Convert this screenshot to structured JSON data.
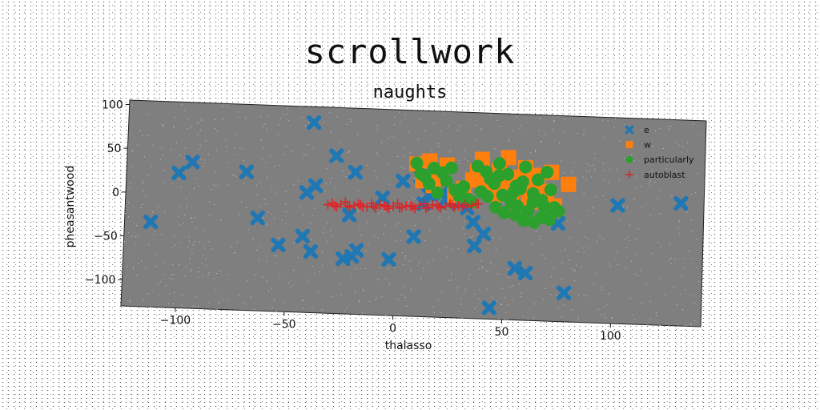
{
  "title": "scrollwork",
  "chart_data": {
    "type": "scatter",
    "title": "naughts",
    "xlabel": "thalasso",
    "ylabel": "pheasantwood",
    "xlim": [
      -125,
      140
    ],
    "ylim": [
      -130,
      105
    ],
    "xticks": [
      -100,
      -50,
      0,
      50,
      100
    ],
    "yticks": [
      -100,
      -50,
      0,
      50,
      100
    ],
    "xtick_labels": [
      "−100",
      "−50",
      "0",
      "50",
      "100"
    ],
    "ytick_labels": [
      "−100",
      "−50",
      "0",
      "50",
      "100"
    ],
    "legend_position": "top-right",
    "series": [
      {
        "name": "e",
        "marker": "x-thick",
        "color": "#1f77b4",
        "x": [
          -113,
          -101,
          -95,
          -70,
          -64,
          -54,
          -43,
          -42,
          -40,
          -39,
          -38,
          -29,
          -24,
          -22,
          -20,
          -20,
          -18,
          -7,
          -3,
          2,
          8,
          10,
          12,
          14,
          20,
          22,
          25,
          28,
          32,
          35,
          36,
          40,
          44,
          55,
          60,
          74,
          78,
          101,
          130
        ],
        "y": [
          -33,
          24,
          37,
          28,
          -24,
          -54,
          -43,
          7,
          87,
          -60,
          15,
          50,
          -67,
          -17,
          32,
          -64,
          -57,
          4,
          -66,
          24,
          -39,
          30,
          -1,
          10,
          11,
          5,
          7,
          1,
          -4,
          -20,
          -47,
          -33,
          -117,
          -71,
          -76,
          -18,
          -97,
          5,
          10
        ]
      },
      {
        "name": "w",
        "marker": "square",
        "color": "#ff7f0e",
        "x": [
          8,
          11,
          14,
          16,
          18,
          22,
          26,
          30,
          34,
          36,
          38,
          40,
          42,
          44,
          46,
          48,
          50,
          52,
          54,
          56,
          58,
          60,
          62,
          64,
          66,
          68,
          70,
          72,
          78
        ],
        "y": [
          44,
          25,
          48,
          20,
          30,
          44,
          10,
          18,
          28,
          38,
          52,
          30,
          22,
          12,
          40,
          24,
          55,
          16,
          33,
          20,
          44,
          10,
          28,
          36,
          6,
          18,
          40,
          2,
          27
        ]
      },
      {
        "name": "particularly",
        "marker": "circle",
        "color": "#2ca02c",
        "x": [
          8,
          10,
          12,
          14,
          16,
          18,
          20,
          22,
          24,
          26,
          28,
          30,
          32,
          34,
          36,
          38,
          40,
          42,
          44,
          46,
          48,
          50,
          52,
          54,
          56,
          58,
          60,
          62,
          64,
          66,
          68,
          70,
          72,
          74,
          54,
          58,
          62,
          66,
          70,
          45,
          49,
          53,
          57,
          63,
          67,
          71,
          41,
          46,
          55
        ],
        "y": [
          45,
          33,
          30,
          22,
          40,
          12,
          35,
          26,
          41,
          16,
          9,
          20,
          6,
          3,
          44,
          15,
          38,
          30,
          25,
          48,
          12,
          36,
          4,
          23,
          20,
          45,
          -5,
          15,
          31,
          8,
          40,
          -14,
          0,
          -4,
          -10,
          -16,
          5,
          -12,
          20,
          -2,
          -8,
          16,
          28,
          -18,
          2,
          -6,
          10,
          34,
          0
        ],
        "size": 16
      },
      {
        "name": "autoblast",
        "marker": "plus",
        "color": "#d62728",
        "x": [
          -32,
          -29,
          -26,
          -23,
          -20,
          -17,
          -14,
          -11,
          -8,
          -5,
          -2,
          1,
          4,
          7,
          10,
          13,
          16,
          19,
          22,
          25,
          28,
          31,
          34,
          37,
          -30,
          -24,
          -18,
          -12,
          -6,
          0,
          6,
          12,
          18,
          24,
          30,
          36,
          -28,
          -22,
          -16,
          -10,
          -4,
          2,
          8,
          14,
          20,
          26,
          32
        ],
        "y": [
          -6,
          -7,
          -5,
          -7,
          -6,
          -5,
          -7,
          -6,
          -4,
          -6,
          -5,
          -7,
          -4,
          -5,
          -3,
          -6,
          -2,
          -4,
          -3,
          -1,
          -2,
          0,
          -1,
          1,
          -4,
          -2,
          -4,
          -3,
          -5,
          -2,
          -4,
          -1,
          -2,
          0,
          -3,
          1,
          -8,
          -8,
          -7,
          -8,
          -8,
          -6,
          -7,
          -5,
          -5,
          -4,
          -3
        ]
      }
    ]
  }
}
